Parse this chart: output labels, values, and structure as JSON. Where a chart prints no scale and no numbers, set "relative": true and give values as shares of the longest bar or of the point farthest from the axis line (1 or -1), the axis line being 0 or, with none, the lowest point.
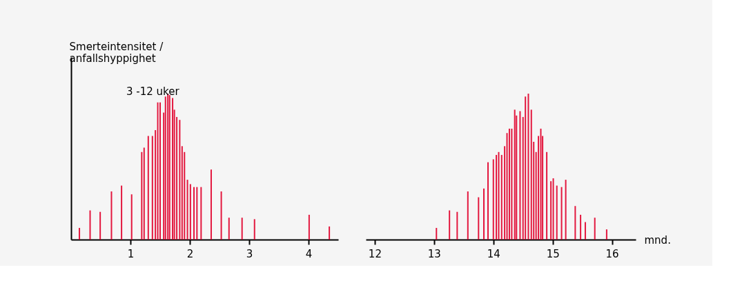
{
  "chart_data": [
    {
      "type": "bar",
      "relative": true,
      "ylabel": "Smerteintensitet / anfallshyppighet",
      "color": "#e3173e",
      "grid": false,
      "annotations": [
        "3 -12 uker"
      ],
      "xlim": [
        0,
        4.5
      ],
      "xticks": [
        1,
        2,
        3,
        4
      ],
      "x": [
        0.14,
        0.32,
        0.49,
        0.68,
        0.85,
        1.02,
        1.19,
        1.23,
        1.3,
        1.37,
        1.42,
        1.46,
        1.5,
        1.56,
        1.59,
        1.63,
        1.66,
        1.71,
        1.74,
        1.78,
        1.83,
        1.87,
        1.91,
        1.96,
        2.01,
        2.07,
        2.12,
        2.19,
        2.36,
        2.53,
        2.66,
        2.88,
        3.09,
        4.01,
        4.35
      ],
      "values": [
        0.08,
        0.2,
        0.19,
        0.33,
        0.37,
        0.31,
        0.6,
        0.63,
        0.71,
        0.71,
        0.75,
        0.94,
        0.94,
        0.87,
        0.98,
        1,
        0.99,
        0.97,
        0.89,
        0.84,
        0.82,
        0.64,
        0.6,
        0.41,
        0.38,
        0.36,
        0.36,
        0.36,
        0.48,
        0.33,
        0.15,
        0.15,
        0.14,
        0.17,
        0.09
      ]
    },
    {
      "type": "bar",
      "relative": true,
      "xlabel": "mnd.",
      "color": "#e3173e",
      "grid": false,
      "tick_labels": "x",
      "xlim": [
        11.85,
        16.4
      ],
      "xticks": [
        12,
        13,
        14,
        15,
        16
      ],
      "x": [
        13.04,
        13.26,
        13.39,
        13.57,
        13.75,
        13.84,
        13.91,
        14.0,
        14.05,
        14.09,
        14.14,
        14.19,
        14.23,
        14.27,
        14.31,
        14.36,
        14.39,
        14.45,
        14.5,
        14.54,
        14.59,
        14.64,
        14.68,
        14.72,
        14.76,
        14.8,
        14.83,
        14.9,
        14.97,
        15.01,
        15.07,
        15.15,
        15.22,
        15.38,
        15.47,
        15.55,
        15.71,
        15.91
      ],
      "values": [
        0.08,
        0.2,
        0.19,
        0.33,
        0.29,
        0.35,
        0.53,
        0.55,
        0.58,
        0.6,
        0.58,
        0.64,
        0.73,
        0.76,
        0.76,
        0.89,
        0.85,
        0.88,
        0.84,
        0.98,
        1,
        0.89,
        0.67,
        0.6,
        0.71,
        0.76,
        0.71,
        0.6,
        0.4,
        0.42,
        0.37,
        0.36,
        0.41,
        0.23,
        0.17,
        0.12,
        0.15,
        0.07
      ]
    }
  ]
}
